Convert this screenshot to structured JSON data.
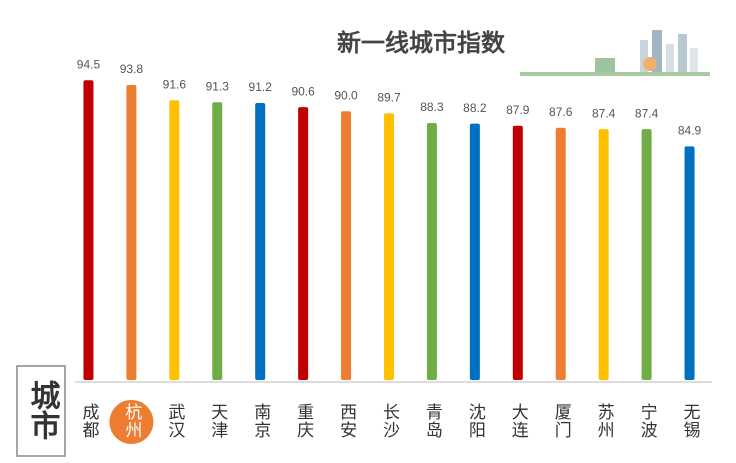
{
  "chart_data": {
    "type": "bar",
    "title": "新一线城市指数",
    "x_label": "城市",
    "categories": [
      "成都",
      "杭州",
      "武汉",
      "天津",
      "南京",
      "重庆",
      "西安",
      "长沙",
      "青岛",
      "沈阳",
      "大连",
      "厦门",
      "苏州",
      "宁波",
      "无锡"
    ],
    "values": [
      94.5,
      93.8,
      91.6,
      91.3,
      91.2,
      90.6,
      90.0,
      89.7,
      88.3,
      88.2,
      87.9,
      87.6,
      87.4,
      87.4,
      84.9
    ],
    "value_labels": [
      "94.5",
      "93.8",
      "91.6",
      "91.3",
      "91.2",
      "90.6",
      "90.0",
      "89.7",
      "88.3",
      "88.2",
      "87.9",
      "87.6",
      "87.4",
      "87.4",
      "84.9"
    ],
    "colors": [
      "#c00000",
      "#ed7d31",
      "#ffc000",
      "#70ad47",
      "#0070c0"
    ],
    "highlight": 1,
    "ylim": [
      51,
      97
    ]
  }
}
